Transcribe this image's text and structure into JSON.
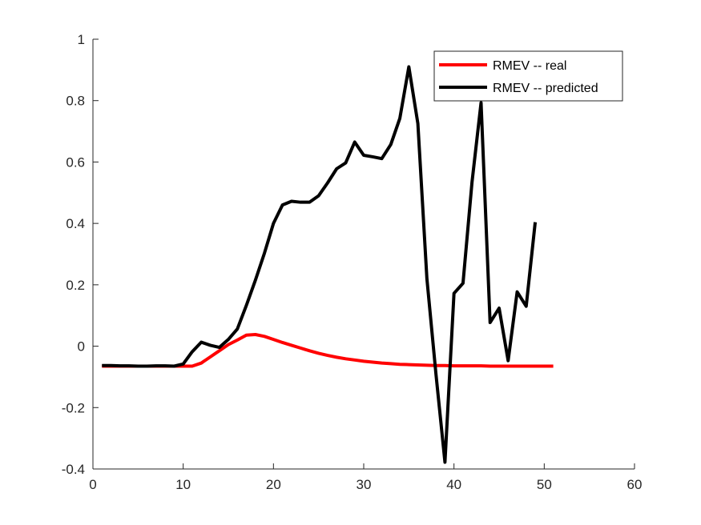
{
  "chart_data": {
    "type": "line",
    "title": "",
    "xlabel": "",
    "ylabel": "",
    "xlim": [
      0,
      60
    ],
    "ylim": [
      -0.4,
      1
    ],
    "x_ticks": [
      0,
      10,
      20,
      30,
      40,
      50,
      60
    ],
    "y_ticks": [
      -0.4,
      -0.2,
      0,
      0.2,
      0.4,
      0.6,
      0.8,
      1
    ],
    "x_tick_labels": [
      "0",
      "10",
      "20",
      "30",
      "40",
      "50",
      "60"
    ],
    "y_tick_labels": [
      "-0.4",
      "-0.2",
      "0",
      "0.2",
      "0.4",
      "0.6",
      "0.8",
      "1"
    ],
    "grid": false,
    "legend_position": "top-right",
    "series": [
      {
        "name": "RMEV -- real",
        "color": "#ff0000",
        "x": [
          1,
          2,
          3,
          4,
          5,
          6,
          7,
          8,
          9,
          10,
          11,
          12,
          13,
          14,
          15,
          16,
          17,
          18,
          19,
          20,
          21,
          22,
          23,
          24,
          25,
          26,
          27,
          28,
          29,
          30,
          31,
          32,
          33,
          34,
          35,
          36,
          37,
          38,
          39,
          40,
          41,
          42,
          43,
          44,
          45,
          46,
          47,
          48,
          49,
          50,
          51
        ],
        "y": [
          -0.065,
          -0.065,
          -0.065,
          -0.065,
          -0.065,
          -0.065,
          -0.065,
          -0.065,
          -0.065,
          -0.065,
          -0.065,
          -0.055,
          -0.035,
          -0.015,
          0.005,
          0.02,
          0.036,
          0.038,
          0.032,
          0.022,
          0.012,
          0.003,
          -0.006,
          -0.015,
          -0.023,
          -0.03,
          -0.036,
          -0.041,
          -0.045,
          -0.049,
          -0.052,
          -0.055,
          -0.057,
          -0.059,
          -0.06,
          -0.061,
          -0.062,
          -0.063,
          -0.063,
          -0.064,
          -0.064,
          -0.064,
          -0.064,
          -0.065,
          -0.065,
          -0.065,
          -0.065,
          -0.065,
          -0.065,
          -0.065,
          -0.065
        ]
      },
      {
        "name": "RMEV -- predicted",
        "color": "#000000",
        "x": [
          1,
          2,
          3,
          4,
          5,
          6,
          7,
          8,
          9,
          10,
          11,
          12,
          13,
          14,
          15,
          16,
          17,
          18,
          19,
          20,
          21,
          22,
          23,
          24,
          25,
          26,
          27,
          28,
          29,
          30,
          31,
          32,
          33,
          34,
          35,
          36,
          37,
          38,
          39,
          40,
          41,
          42,
          43,
          44,
          45,
          46,
          47,
          48,
          49
        ],
        "y": [
          -0.063,
          -0.063,
          -0.064,
          -0.064,
          -0.065,
          -0.065,
          -0.064,
          -0.064,
          -0.065,
          -0.058,
          -0.018,
          0.013,
          0.003,
          -0.004,
          0.022,
          0.056,
          0.133,
          0.215,
          0.303,
          0.4,
          0.46,
          0.472,
          0.469,
          0.469,
          0.49,
          0.532,
          0.578,
          0.597,
          0.665,
          0.622,
          0.617,
          0.611,
          0.657,
          0.742,
          0.91,
          0.725,
          0.22,
          -0.09,
          -0.378,
          0.172,
          0.205,
          0.535,
          0.793,
          0.077,
          0.124,
          -0.047,
          0.177,
          0.13,
          0.404
        ]
      }
    ]
  }
}
